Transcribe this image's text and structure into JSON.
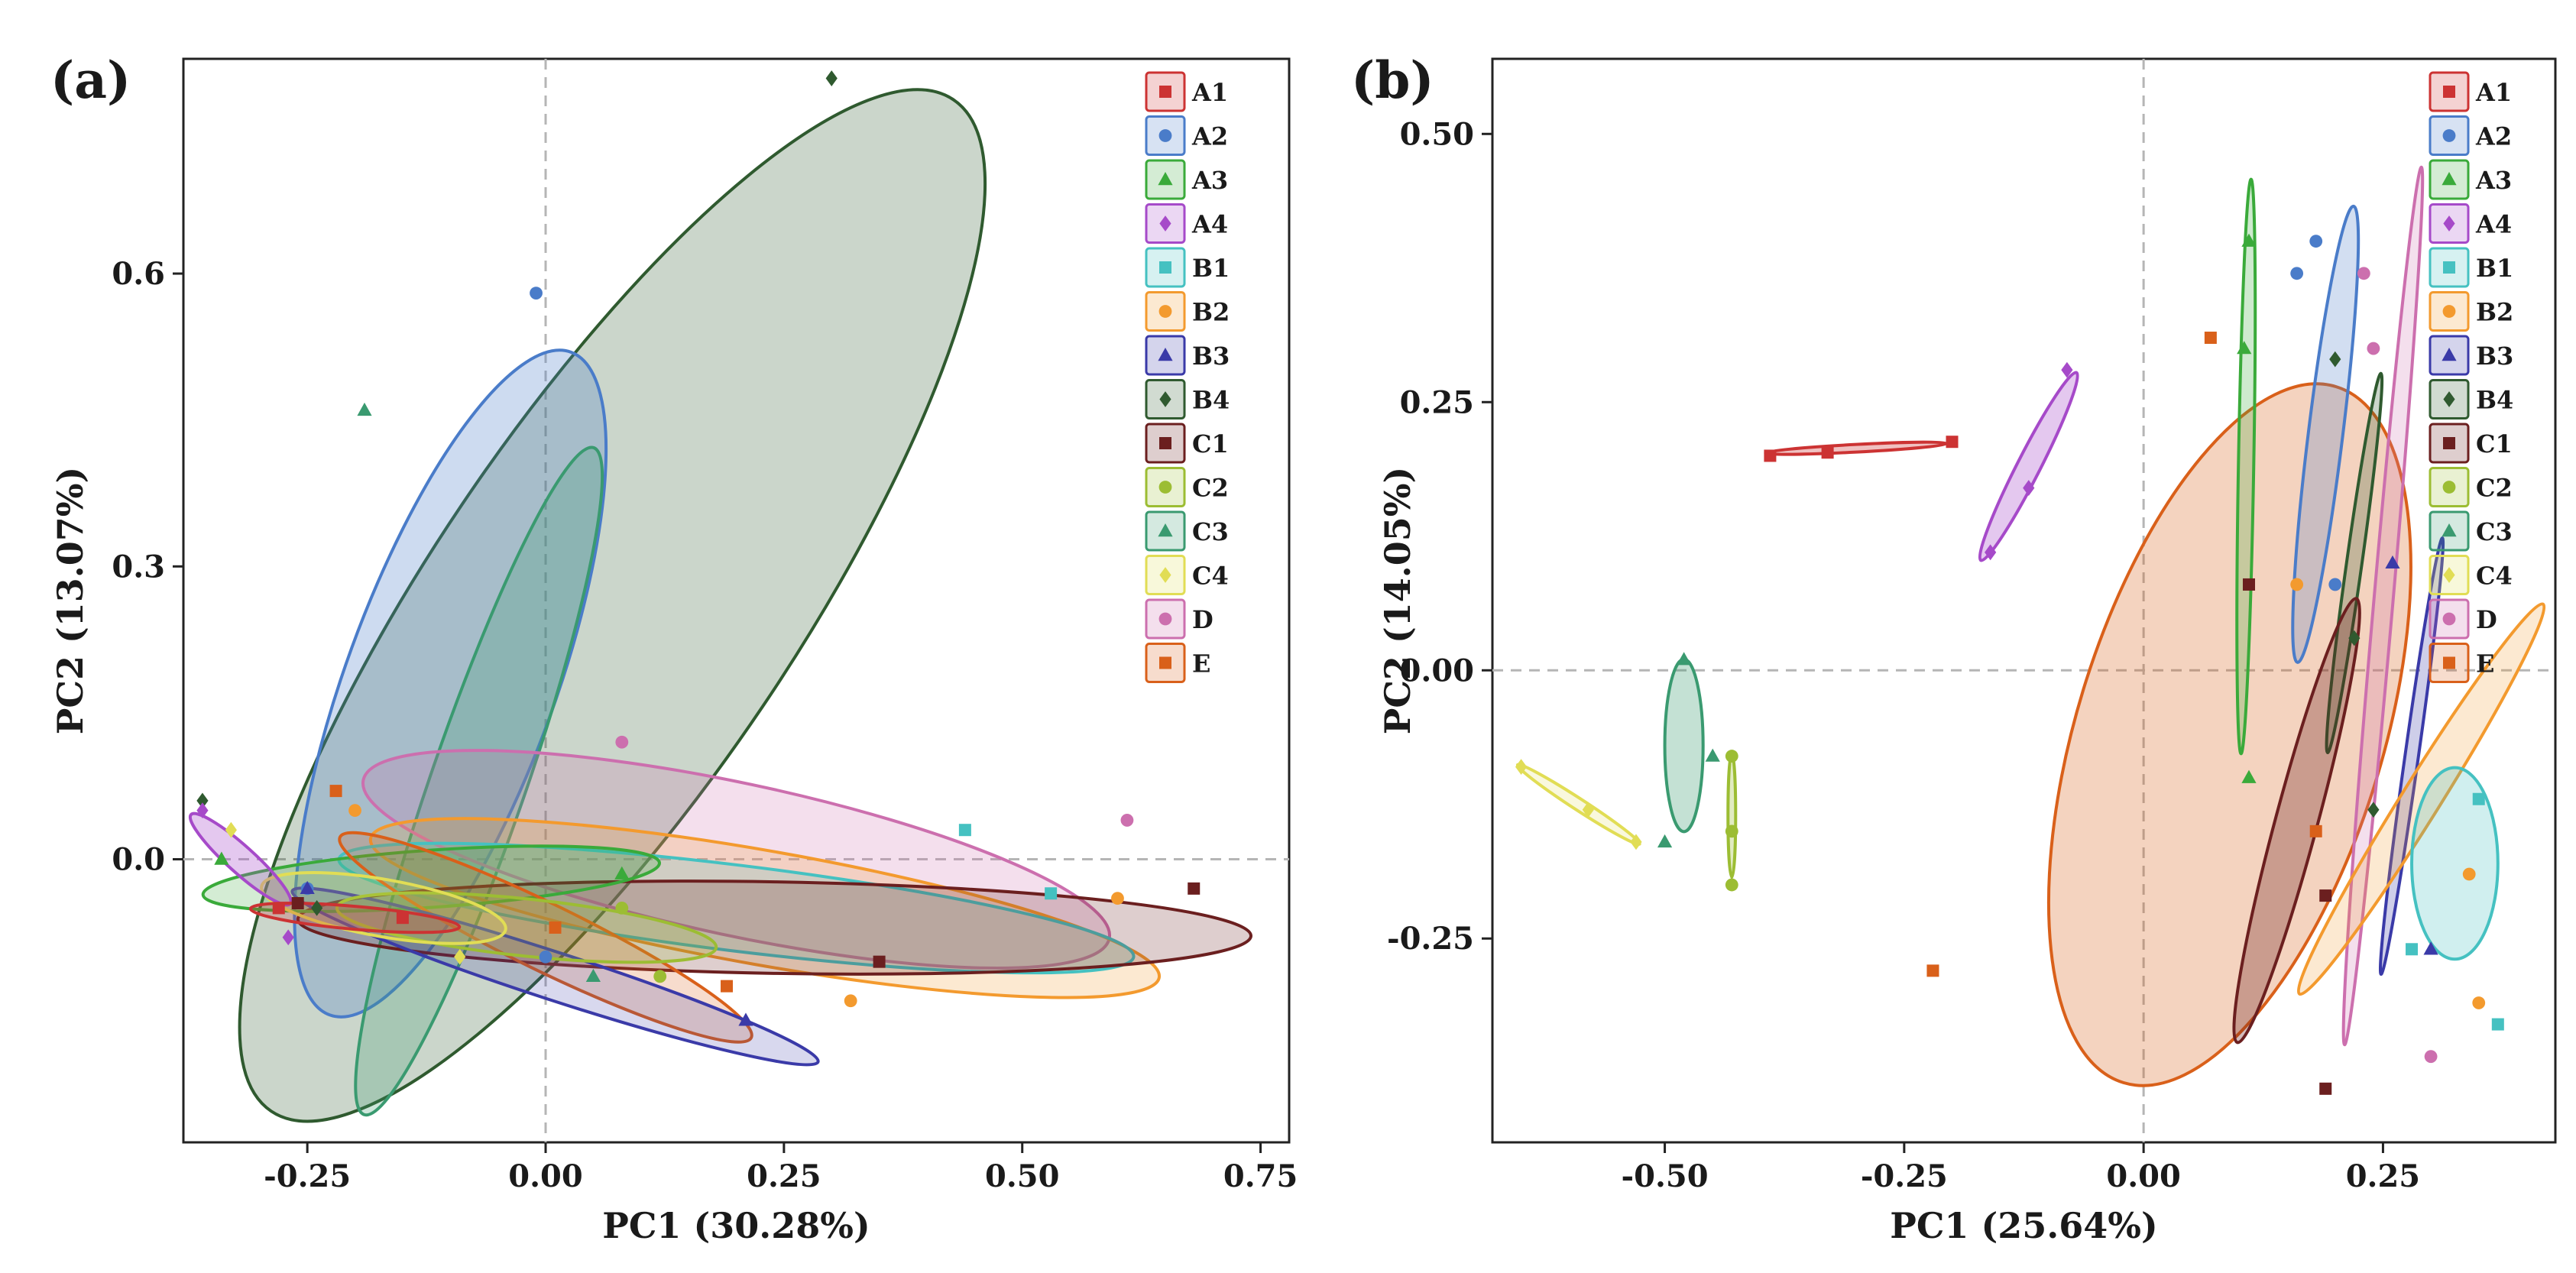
{
  "groups": [
    {
      "name": "A1",
      "color": "#cc3333",
      "marker": "square"
    },
    {
      "name": "A2",
      "color": "#4a7cc9",
      "marker": "circle"
    },
    {
      "name": "A3",
      "color": "#3aaa3a",
      "marker": "triangle"
    },
    {
      "name": "A4",
      "color": "#a64ac9",
      "marker": "diamond"
    },
    {
      "name": "B1",
      "color": "#45c1c1",
      "marker": "square"
    },
    {
      "name": "B2",
      "color": "#f39a2e",
      "marker": "circle"
    },
    {
      "name": "B3",
      "color": "#3a3aa8",
      "marker": "triangle"
    },
    {
      "name": "B4",
      "color": "#2f5a2f",
      "marker": "diamond"
    },
    {
      "name": "C1",
      "color": "#6b1f1f",
      "marker": "square"
    },
    {
      "name": "C2",
      "color": "#9cbd33",
      "marker": "circle"
    },
    {
      "name": "C3",
      "color": "#3a9a70",
      "marker": "triangle"
    },
    {
      "name": "C4",
      "color": "#e1dd55",
      "marker": "diamond"
    },
    {
      "name": "D",
      "color": "#cc6fae",
      "marker": "circle"
    },
    {
      "name": "E",
      "color": "#d9601a",
      "marker": "square"
    }
  ],
  "chart_data": [
    {
      "type": "scatter",
      "panel_label": "(a)",
      "xlabel": "PC1 (30.28%)",
      "ylabel": "PC2 (13.07%)",
      "xlim": [
        -0.38,
        0.78
      ],
      "ylim": [
        -0.29,
        0.82
      ],
      "xticks": [
        -0.25,
        0.0,
        0.25,
        0.5,
        0.75
      ],
      "xtick_labels": [
        "-0.25",
        "0.00",
        "0.25",
        "0.50",
        "0.75"
      ],
      "yticks": [
        0.0,
        0.3,
        0.6
      ],
      "ytick_labels": [
        "0.0",
        "0.3",
        "0.6"
      ],
      "reference_lines": {
        "x": 0,
        "y": 0
      },
      "legend": "top-right",
      "ellipses": [
        {
          "group": "B4",
          "cx": 0.07,
          "cy": 0.26,
          "rx": 0.64,
          "ry": 0.19,
          "angle": 56,
          "opacity": 0.25
        },
        {
          "group": "A2",
          "cx": -0.1,
          "cy": 0.18,
          "rx": 0.37,
          "ry": 0.11,
          "angle": 70,
          "opacity": 0.28
        },
        {
          "group": "C3",
          "cx": -0.07,
          "cy": 0.08,
          "rx": 0.37,
          "ry": 0.05,
          "angle": 71,
          "opacity": 0.25
        },
        {
          "group": "D",
          "cx": 0.2,
          "cy": 0.0,
          "rx": 0.4,
          "ry": 0.08,
          "angle": -12,
          "opacity": 0.22
        },
        {
          "group": "B2",
          "cx": 0.23,
          "cy": -0.05,
          "rx": 0.42,
          "ry": 0.06,
          "angle": -10,
          "opacity": 0.22
        },
        {
          "group": "B1",
          "cx": 0.2,
          "cy": -0.05,
          "rx": 0.42,
          "ry": 0.045,
          "angle": -7,
          "opacity": 0.2
        },
        {
          "group": "C1",
          "cx": 0.24,
          "cy": -0.07,
          "rx": 0.5,
          "ry": 0.048,
          "angle": -1,
          "opacity": 0.22
        },
        {
          "group": "A3",
          "cx": -0.12,
          "cy": -0.02,
          "rx": 0.24,
          "ry": 0.03,
          "angle": 4,
          "opacity": 0.22
        },
        {
          "group": "E",
          "cx": 0.0,
          "cy": -0.08,
          "rx": 0.24,
          "ry": 0.035,
          "angle": -26,
          "opacity": 0.22
        },
        {
          "group": "B3",
          "cx": 0.01,
          "cy": -0.12,
          "rx": 0.29,
          "ry": 0.025,
          "angle": -18,
          "opacity": 0.2
        },
        {
          "group": "C2",
          "cx": -0.02,
          "cy": -0.07,
          "rx": 0.2,
          "ry": 0.03,
          "angle": -6,
          "opacity": 0.2
        },
        {
          "group": "C4",
          "cx": -0.17,
          "cy": -0.05,
          "rx": 0.13,
          "ry": 0.03,
          "angle": -10,
          "opacity": 0.2
        },
        {
          "group": "A4",
          "cx": -0.32,
          "cy": 0.0,
          "rx": 0.07,
          "ry": 0.014,
          "angle": -42,
          "opacity": 0.3
        },
        {
          "group": "A1",
          "cx": -0.2,
          "cy": -0.06,
          "rx": 0.11,
          "ry": 0.012,
          "angle": -5,
          "opacity": 0.25
        }
      ],
      "points": [
        {
          "group": "B4",
          "x": 0.3,
          "y": 0.8
        },
        {
          "group": "B4",
          "x": -0.36,
          "y": 0.06
        },
        {
          "group": "B4",
          "x": -0.24,
          "y": -0.05
        },
        {
          "group": "A2",
          "x": -0.01,
          "y": 0.58
        },
        {
          "group": "A2",
          "x": -0.25,
          "y": -0.03
        },
        {
          "group": "A2",
          "x": 0.0,
          "y": -0.1
        },
        {
          "group": "C3",
          "x": -0.19,
          "y": 0.46
        },
        {
          "group": "C3",
          "x": 0.05,
          "y": -0.12
        },
        {
          "group": "D",
          "x": 0.08,
          "y": 0.12
        },
        {
          "group": "D",
          "x": 0.61,
          "y": 0.04
        },
        {
          "group": "B1",
          "x": 0.44,
          "y": 0.03
        },
        {
          "group": "B1",
          "x": 0.53,
          "y": -0.035
        },
        {
          "group": "B2",
          "x": 0.32,
          "y": -0.145
        },
        {
          "group": "B2",
          "x": 0.6,
          "y": -0.04
        },
        {
          "group": "B2",
          "x": -0.2,
          "y": 0.05
        },
        {
          "group": "C1",
          "x": 0.68,
          "y": -0.03
        },
        {
          "group": "C1",
          "x": 0.35,
          "y": -0.105
        },
        {
          "group": "C1",
          "x": -0.26,
          "y": -0.045
        },
        {
          "group": "E",
          "x": -0.22,
          "y": 0.07
        },
        {
          "group": "E",
          "x": 0.19,
          "y": -0.13
        },
        {
          "group": "E",
          "x": 0.01,
          "y": -0.07
        },
        {
          "group": "A3",
          "x": -0.34,
          "y": 0.0
        },
        {
          "group": "A3",
          "x": 0.08,
          "y": -0.015
        },
        {
          "group": "B3",
          "x": 0.21,
          "y": -0.165
        },
        {
          "group": "B3",
          "x": -0.25,
          "y": -0.03
        },
        {
          "group": "C2",
          "x": 0.08,
          "y": -0.05
        },
        {
          "group": "C2",
          "x": 0.12,
          "y": -0.12
        },
        {
          "group": "C4",
          "x": -0.33,
          "y": 0.03
        },
        {
          "group": "C4",
          "x": -0.09,
          "y": -0.1
        },
        {
          "group": "A4",
          "x": -0.36,
          "y": 0.05
        },
        {
          "group": "A4",
          "x": -0.27,
          "y": -0.08
        },
        {
          "group": "A1",
          "x": -0.28,
          "y": -0.05
        },
        {
          "group": "A1",
          "x": -0.15,
          "y": -0.06
        }
      ]
    },
    {
      "type": "scatter",
      "panel_label": "(b)",
      "xlabel": "PC1 (25.64%)",
      "ylabel": "PC2 (14.05%)",
      "xlim": [
        -0.68,
        0.43
      ],
      "ylim": [
        -0.44,
        0.57
      ],
      "xticks": [
        -0.5,
        -0.25,
        0.0,
        0.25
      ],
      "xtick_labels": [
        "-0.50",
        "-0.25",
        "0.00",
        "0.25"
      ],
      "yticks": [
        -0.25,
        0.0,
        0.25,
        0.5
      ],
      "ytick_labels": [
        "-0.25",
        "0.00",
        "0.25",
        "0.50"
      ],
      "reference_lines": {
        "x": 0,
        "y": 0
      },
      "legend": "top-right",
      "ellipses": [
        {
          "group": "E",
          "cx": 0.09,
          "cy": -0.06,
          "rx": 0.38,
          "ry": 0.16,
          "angle": 73,
          "opacity": 0.28
        },
        {
          "group": "A2",
          "cx": 0.19,
          "cy": 0.22,
          "rx": 0.24,
          "ry": 0.018,
          "angle": 83,
          "opacity": 0.25
        },
        {
          "group": "A3",
          "cx": 0.107,
          "cy": 0.19,
          "rx": 0.3,
          "ry": 0.008,
          "angle": 89,
          "opacity": 0.25
        },
        {
          "group": "A4",
          "cx": -0.12,
          "cy": 0.19,
          "rx": 0.11,
          "ry": 0.012,
          "angle": 63,
          "opacity": 0.3
        },
        {
          "group": "D",
          "cx": 0.25,
          "cy": 0.06,
          "rx": 0.46,
          "ry": 0.01,
          "angle": 85,
          "opacity": 0.22
        },
        {
          "group": "B4",
          "cx": 0.22,
          "cy": 0.1,
          "rx": 0.2,
          "ry": 0.008,
          "angle": 82,
          "opacity": 0.25
        },
        {
          "group": "B3",
          "cx": 0.28,
          "cy": -0.08,
          "rx": 0.23,
          "ry": 0.007,
          "angle": 82,
          "opacity": 0.25
        },
        {
          "group": "C1",
          "cx": 0.16,
          "cy": -0.14,
          "rx": 0.24,
          "ry": 0.022,
          "angle": 75,
          "opacity": 0.3
        },
        {
          "group": "B2",
          "cx": 0.29,
          "cy": -0.12,
          "rx": 0.24,
          "ry": 0.02,
          "angle": 58,
          "opacity": 0.22
        },
        {
          "group": "B1",
          "cx": 0.325,
          "cy": -0.18,
          "rx": 0.1,
          "ry": 0.045,
          "angle": 90,
          "opacity": 0.25
        },
        {
          "group": "C3",
          "cx": -0.48,
          "cy": -0.07,
          "rx": 0.09,
          "ry": 0.02,
          "angle": 90,
          "opacity": 0.3
        },
        {
          "group": "C4",
          "cx": -0.59,
          "cy": -0.125,
          "rx": 0.076,
          "ry": 0.006,
          "angle": -33,
          "opacity": 0.2
        },
        {
          "group": "C2",
          "cx": -0.43,
          "cy": -0.135,
          "rx": 0.065,
          "ry": 0.004,
          "angle": 90,
          "opacity": 0.3
        },
        {
          "group": "A1",
          "cx": -0.3,
          "cy": 0.207,
          "rx": 0.095,
          "ry": 0.004,
          "angle": 3,
          "opacity": 0.3
        }
      ],
      "points": [
        {
          "group": "A1",
          "x": -0.39,
          "y": 0.2
        },
        {
          "group": "A1",
          "x": -0.33,
          "y": 0.203
        },
        {
          "group": "A1",
          "x": -0.2,
          "y": 0.213
        },
        {
          "group": "A2",
          "x": 0.16,
          "y": 0.37
        },
        {
          "group": "A2",
          "x": 0.18,
          "y": 0.4
        },
        {
          "group": "A2",
          "x": 0.2,
          "y": 0.08
        },
        {
          "group": "A3",
          "x": 0.11,
          "y": 0.4
        },
        {
          "group": "A3",
          "x": 0.105,
          "y": 0.3
        },
        {
          "group": "A3",
          "x": 0.11,
          "y": -0.1
        },
        {
          "group": "A4",
          "x": -0.08,
          "y": 0.28
        },
        {
          "group": "A4",
          "x": -0.12,
          "y": 0.17
        },
        {
          "group": "A4",
          "x": -0.16,
          "y": 0.11
        },
        {
          "group": "B1",
          "x": 0.35,
          "y": -0.12
        },
        {
          "group": "B1",
          "x": 0.28,
          "y": -0.26
        },
        {
          "group": "B1",
          "x": 0.37,
          "y": -0.33
        },
        {
          "group": "B2",
          "x": 0.16,
          "y": 0.08
        },
        {
          "group": "B2",
          "x": 0.34,
          "y": -0.19
        },
        {
          "group": "B2",
          "x": 0.35,
          "y": -0.31
        },
        {
          "group": "B3",
          "x": 0.26,
          "y": 0.1
        },
        {
          "group": "B3",
          "x": 0.3,
          "y": -0.26
        },
        {
          "group": "B4",
          "x": 0.2,
          "y": 0.29
        },
        {
          "group": "B4",
          "x": 0.22,
          "y": 0.03
        },
        {
          "group": "B4",
          "x": 0.24,
          "y": -0.13
        },
        {
          "group": "C1",
          "x": 0.11,
          "y": 0.08
        },
        {
          "group": "C1",
          "x": 0.19,
          "y": -0.21
        },
        {
          "group": "C1",
          "x": 0.19,
          "y": -0.39
        },
        {
          "group": "C2",
          "x": -0.43,
          "y": -0.08
        },
        {
          "group": "C2",
          "x": -0.43,
          "y": -0.15
        },
        {
          "group": "C2",
          "x": -0.43,
          "y": -0.2
        },
        {
          "group": "C3",
          "x": -0.48,
          "y": 0.01
        },
        {
          "group": "C3",
          "x": -0.45,
          "y": -0.08
        },
        {
          "group": "C3",
          "x": -0.5,
          "y": -0.16
        },
        {
          "group": "C4",
          "x": -0.65,
          "y": -0.09
        },
        {
          "group": "C4",
          "x": -0.58,
          "y": -0.13
        },
        {
          "group": "C4",
          "x": -0.53,
          "y": -0.16
        },
        {
          "group": "D",
          "x": 0.23,
          "y": 0.37
        },
        {
          "group": "D",
          "x": 0.24,
          "y": 0.3
        },
        {
          "group": "D",
          "x": 0.3,
          "y": -0.36
        },
        {
          "group": "E",
          "x": 0.07,
          "y": 0.31
        },
        {
          "group": "E",
          "x": 0.18,
          "y": -0.15
        },
        {
          "group": "E",
          "x": -0.22,
          "y": -0.28
        }
      ]
    }
  ]
}
